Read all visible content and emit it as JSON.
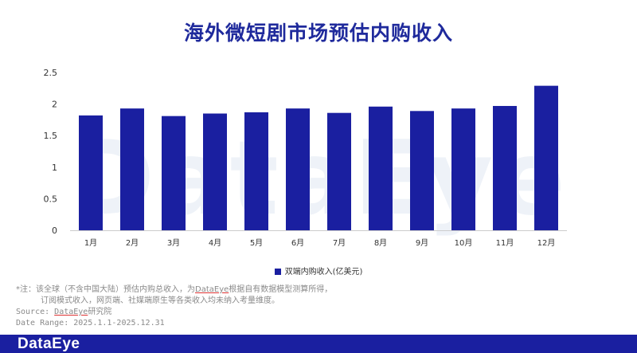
{
  "title": "海外微短剧市场预估内购收入",
  "watermark": "DataEye",
  "chart_data": {
    "type": "bar",
    "title": "海外微短剧市场预估内购收入",
    "categories": [
      "1月",
      "2月",
      "3月",
      "4月",
      "5月",
      "6月",
      "7月",
      "8月",
      "9月",
      "10月",
      "11月",
      "12月"
    ],
    "series": [
      {
        "name": "双端内购收入(亿美元)",
        "values": [
          1.82,
          1.93,
          1.81,
          1.85,
          1.87,
          1.93,
          1.86,
          1.96,
          1.89,
          1.93,
          1.97,
          2.29
        ]
      }
    ],
    "ylim": [
      0,
      2.5
    ],
    "yticks": [
      "0",
      "0.5",
      "1",
      "1.5",
      "2",
      "2.5"
    ],
    "grid": false,
    "legend_position": "bottom",
    "colors": {
      "bar": "#1a1fa0",
      "axis": "#cccccc",
      "tick_text": "#333333"
    }
  },
  "legend": {
    "label": "双端内购收入(亿美元)"
  },
  "notes": {
    "line1_pre": "*注：该全球（不含中国大陆）预估内购总收入，为",
    "line1_brand": "DataEye",
    "line1_post": "根据自有数据模型测算所得，",
    "line2": "订阅模式收入，网页端、社媒端原生等各类收入均未纳入考量维度。",
    "source_label": "Source: ",
    "source_brand": "DataEye",
    "source_post": "研究院",
    "date_range": "Date Range: 2025.1.1-2025.12.31"
  },
  "footer": {
    "logo": "DataEye",
    "color": "#1a1fa0"
  }
}
